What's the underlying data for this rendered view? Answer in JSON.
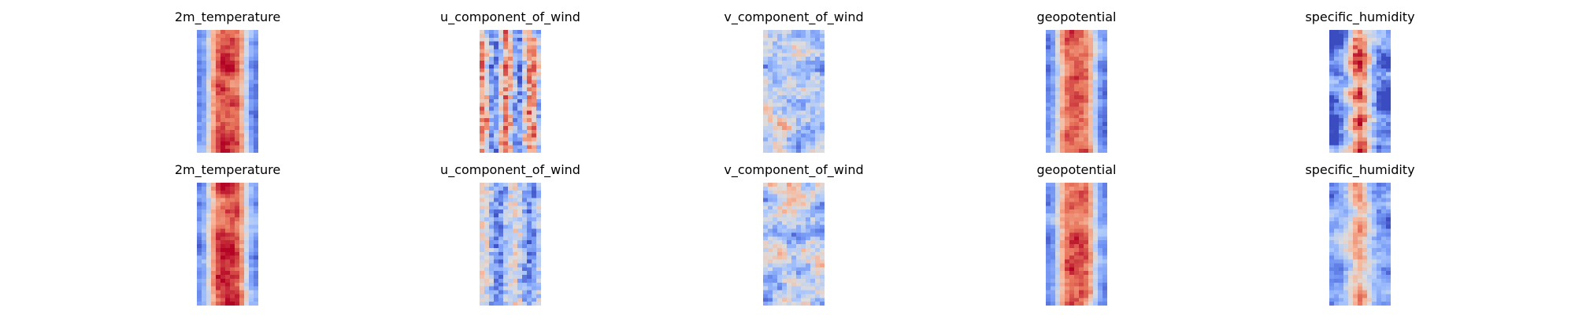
{
  "colors": {
    "colormap": "coolwarm",
    "stops": [
      "#3b4cc0",
      "#6f92f3",
      "#aac7fd",
      "#dddcdc",
      "#f7b89c",
      "#e7745b",
      "#b40426"
    ]
  },
  "chart_data": {
    "type": "heatmap",
    "layout": {
      "rows": 2,
      "cols": 5,
      "axes": "off",
      "colorbar": false
    },
    "rows": [
      {
        "panels": [
          {
            "title": "2m_temperature",
            "style": "warm-band",
            "seed": 11
          },
          {
            "title": "u_component_of_wind",
            "style": "wind-stripes",
            "seed": 12
          },
          {
            "title": "v_component_of_wind",
            "style": "light-noise",
            "seed": 13
          },
          {
            "title": "geopotential",
            "style": "warm-band",
            "seed": 14
          },
          {
            "title": "specific_humidity",
            "style": "humidity",
            "seed": 15
          }
        ]
      },
      {
        "panels": [
          {
            "title": "2m_temperature",
            "style": "warm-band",
            "seed": 21
          },
          {
            "title": "u_component_of_wind",
            "style": "wind-blue",
            "seed": 22
          },
          {
            "title": "v_component_of_wind",
            "style": "light-noise",
            "seed": 23
          },
          {
            "title": "geopotential",
            "style": "warm-band",
            "seed": 24
          },
          {
            "title": "specific_humidity",
            "style": "humidity-light",
            "seed": 25
          }
        ]
      }
    ]
  }
}
